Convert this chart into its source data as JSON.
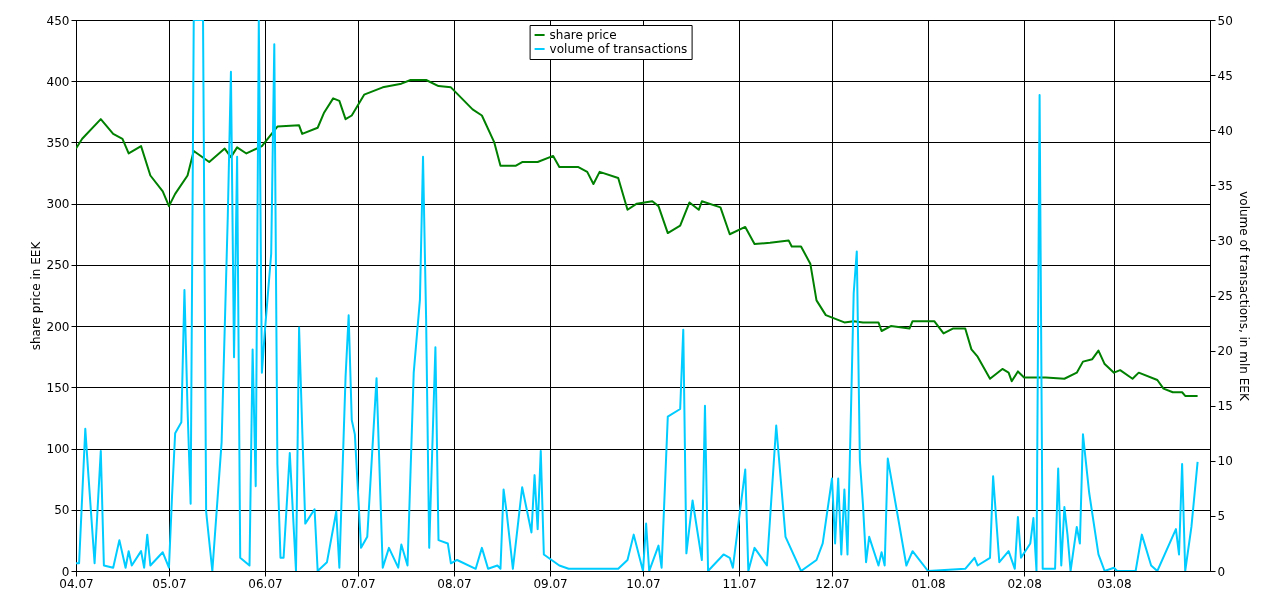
{
  "chart_data": {
    "type": "line",
    "xlabel": null,
    "ylabel": "share price in EEK",
    "y2label": "volume of transactions, in mln EEK",
    "xlim": [
      "2007-04-01",
      "2008-04-01"
    ],
    "xticks": [
      {
        "value": "2007-04-01",
        "label": "04.07"
      },
      {
        "value": "2007-05-01",
        "label": "05.07"
      },
      {
        "value": "2007-06-01",
        "label": "06.07"
      },
      {
        "value": "2007-07-01",
        "label": "07.07"
      },
      {
        "value": "2007-08-01",
        "label": "08.07"
      },
      {
        "value": "2007-09-01",
        "label": "09.07"
      },
      {
        "value": "2007-10-01",
        "label": "10.07"
      },
      {
        "value": "2007-11-01",
        "label": "11.07"
      },
      {
        "value": "2007-12-01",
        "label": "12.07"
      },
      {
        "value": "2008-01-01",
        "label": "01.08"
      },
      {
        "value": "2008-02-01",
        "label": "02.08"
      },
      {
        "value": "2008-03-01",
        "label": "03.08"
      }
    ],
    "ylim": [
      0,
      450
    ],
    "yticks": [
      0,
      50,
      100,
      150,
      200,
      250,
      300,
      350,
      400,
      450
    ],
    "y2lim": [
      0,
      50
    ],
    "y2ticks": [
      0,
      5,
      10,
      15,
      20,
      25,
      30,
      35,
      40,
      45,
      50
    ],
    "grid": true,
    "legend": "top",
    "line_style": "solid",
    "marker": "none",
    "series": [
      {
        "name": "share price",
        "color": "#008000",
        "x": [
          "2007-04-01",
          "2007-04-03",
          "2007-04-09",
          "2007-04-13",
          "2007-04-16",
          "2007-04-18",
          "2007-04-22",
          "2007-04-25",
          "2007-04-29",
          "2007-05-01",
          "2007-05-03",
          "2007-05-07",
          "2007-05-09",
          "2007-05-14",
          "2007-05-19",
          "2007-05-21",
          "2007-05-23",
          "2007-05-26",
          "2007-05-31",
          "2007-06-05",
          "2007-06-12",
          "2007-06-13",
          "2007-06-18",
          "2007-06-20",
          "2007-06-23",
          "2007-06-25",
          "2007-06-27",
          "2007-06-29",
          "2007-07-03",
          "2007-07-09",
          "2007-07-15",
          "2007-07-18",
          "2007-07-23",
          "2007-07-27",
          "2007-07-31",
          "2007-08-07",
          "2007-08-10",
          "2007-08-14",
          "2007-08-16",
          "2007-08-21",
          "2007-08-23",
          "2007-08-28",
          "2007-09-02",
          "2007-09-04",
          "2007-09-10",
          "2007-09-13",
          "2007-09-15",
          "2007-09-17",
          "2007-09-23",
          "2007-09-26",
          "2007-09-29",
          "2007-10-04",
          "2007-10-06",
          "2007-10-09",
          "2007-10-13",
          "2007-10-16",
          "2007-10-19",
          "2007-10-20",
          "2007-10-26",
          "2007-10-29",
          "2007-11-03",
          "2007-11-06",
          "2007-11-11",
          "2007-11-17",
          "2007-11-18",
          "2007-11-21",
          "2007-11-24",
          "2007-11-26",
          "2007-11-29",
          "2007-12-05",
          "2007-12-08",
          "2007-12-11",
          "2007-12-16",
          "2007-12-17",
          "2007-12-20",
          "2007-12-26",
          "2007-12-27",
          "2008-01-03",
          "2008-01-06",
          "2008-01-09",
          "2008-01-13",
          "2008-01-15",
          "2008-01-17",
          "2008-01-21",
          "2008-01-25",
          "2008-01-27",
          "2008-01-28",
          "2008-01-30",
          "2008-02-01",
          "2008-02-08",
          "2008-02-14",
          "2008-02-18",
          "2008-02-20",
          "2008-02-23",
          "2008-02-25",
          "2008-02-27",
          "2008-03-01",
          "2008-03-03",
          "2008-03-07",
          "2008-03-09",
          "2008-03-15",
          "2008-03-17",
          "2008-03-20",
          "2008-03-23",
          "2008-03-24",
          "2008-03-28"
        ],
        "values": [
          345,
          353,
          369,
          357,
          353,
          341,
          347,
          323,
          310,
          298,
          308,
          323,
          343,
          334,
          345,
          338,
          346,
          341,
          347,
          363,
          364,
          357,
          362,
          374,
          386,
          384,
          369,
          372,
          389,
          395,
          398,
          401,
          401,
          396,
          395,
          377,
          372,
          350,
          331,
          331,
          334,
          334,
          339,
          330,
          330,
          326,
          316,
          326,
          321,
          295,
          300,
          302,
          298,
          276,
          282,
          301,
          295,
          302,
          297,
          275,
          281,
          267,
          268,
          270,
          265,
          265,
          251,
          221,
          209,
          203,
          204,
          203,
          203,
          196,
          200,
          198,
          204,
          204,
          194,
          198,
          198,
          181,
          175,
          157,
          165,
          162,
          155,
          163,
          158,
          158,
          157,
          162,
          171,
          173,
          180,
          169,
          162,
          164,
          157,
          162,
          156,
          149,
          146,
          146,
          143,
          143
        ]
      },
      {
        "name": "volume of transactions",
        "color": "#00ccff",
        "axis": "y2",
        "x": [
          "2007-04-01",
          "2007-04-02",
          "2007-04-04",
          "2007-04-05",
          "2007-04-07",
          "2007-04-09",
          "2007-04-10",
          "2007-04-13",
          "2007-04-15",
          "2007-04-17",
          "2007-04-18",
          "2007-04-19",
          "2007-04-22",
          "2007-04-23",
          "2007-04-24",
          "2007-04-25",
          "2007-04-29",
          "2007-05-01",
          "2007-05-02",
          "2007-05-03",
          "2007-05-05",
          "2007-05-06",
          "2007-05-07",
          "2007-05-08",
          "2007-05-09",
          "2007-05-12",
          "2007-05-13",
          "2007-05-15",
          "2007-05-18",
          "2007-05-20",
          "2007-05-21",
          "2007-05-22",
          "2007-05-23",
          "2007-05-24",
          "2007-05-27",
          "2007-05-28",
          "2007-05-29",
          "2007-05-30",
          "2007-05-31",
          "2007-06-01",
          "2007-06-03",
          "2007-06-04",
          "2007-06-05",
          "2007-06-06",
          "2007-06-07",
          "2007-06-09",
          "2007-06-11",
          "2007-06-12",
          "2007-06-13",
          "2007-06-14",
          "2007-06-17",
          "2007-06-18",
          "2007-06-21",
          "2007-06-24",
          "2007-06-25",
          "2007-06-27",
          "2007-06-28",
          "2007-06-29",
          "2007-06-30",
          "2007-07-02",
          "2007-07-04",
          "2007-07-07",
          "2007-07-09",
          "2007-07-11",
          "2007-07-14",
          "2007-07-15",
          "2007-07-17",
          "2007-07-19",
          "2007-07-21",
          "2007-07-22",
          "2007-07-23",
          "2007-07-24",
          "2007-07-26",
          "2007-07-27",
          "2007-07-30",
          "2007-07-31",
          "2007-08-02",
          "2007-08-08",
          "2007-08-10",
          "2007-08-12",
          "2007-08-15",
          "2007-08-16",
          "2007-08-17",
          "2007-08-18",
          "2007-08-20",
          "2007-08-23",
          "2007-08-26",
          "2007-08-27",
          "2007-08-28",
          "2007-08-29",
          "2007-08-30",
          "2007-09-04",
          "2007-09-07",
          "2007-09-14",
          "2007-09-23",
          "2007-09-26",
          "2007-09-28",
          "2007-10-01",
          "2007-10-02",
          "2007-10-03",
          "2007-10-06",
          "2007-10-07",
          "2007-10-09",
          "2007-10-13",
          "2007-10-14",
          "2007-10-15",
          "2007-10-17",
          "2007-10-20",
          "2007-10-21",
          "2007-10-22",
          "2007-10-27",
          "2007-10-29",
          "2007-10-30",
          "2007-11-03",
          "2007-11-04",
          "2007-11-06",
          "2007-11-10",
          "2007-11-13",
          "2007-11-16",
          "2007-11-21",
          "2007-11-26",
          "2007-11-28",
          "2007-12-01",
          "2007-12-02",
          "2007-12-03",
          "2007-12-04",
          "2007-12-05",
          "2007-12-06",
          "2007-12-07",
          "2007-12-08",
          "2007-12-09",
          "2007-12-10",
          "2007-12-11",
          "2007-12-12",
          "2007-12-13",
          "2007-12-16",
          "2007-12-17",
          "2007-12-18",
          "2007-12-19",
          "2007-12-25",
          "2007-12-27",
          "2008-01-01",
          "2008-01-13",
          "2008-01-16",
          "2008-01-17",
          "2008-01-21",
          "2008-01-22",
          "2008-01-24",
          "2008-01-27",
          "2008-01-29",
          "2008-01-30",
          "2008-01-31",
          "2008-02-03",
          "2008-02-04",
          "2008-02-05",
          "2008-02-06",
          "2008-02-07",
          "2008-02-11",
          "2008-02-12",
          "2008-02-13",
          "2008-02-14",
          "2008-02-15",
          "2008-02-16",
          "2008-02-18",
          "2008-02-19",
          "2008-02-20",
          "2008-02-22",
          "2008-02-25",
          "2008-02-27",
          "2008-03-01",
          "2008-03-02",
          "2008-03-08",
          "2008-03-10",
          "2008-03-13",
          "2008-03-15",
          "2008-03-21",
          "2008-03-22",
          "2008-03-23",
          "2008-03-24",
          "2008-03-26",
          "2008-03-28"
        ],
        "values": [
          0.7,
          0.7,
          12.9,
          8.7,
          0.7,
          10.9,
          0.5,
          0.3,
          2.8,
          0.3,
          1.8,
          0.5,
          1.8,
          0.3,
          3.3,
          0.5,
          1.7,
          0.3,
          6.8,
          12.5,
          13.5,
          25.5,
          14.7,
          6.1,
          50,
          50,
          5.4,
          0,
          11.7,
          32.3,
          45.3,
          19.4,
          37.6,
          1.2,
          0.5,
          20.1,
          7.7,
          50,
          18,
          21.9,
          28.8,
          47.8,
          9.7,
          1.2,
          1.2,
          10.7,
          0,
          22.1,
          13,
          4.3,
          5.6,
          0,
          0.8,
          5.4,
          0.3,
          17.6,
          23.2,
          13.7,
          12.4,
          2.1,
          3.1,
          17.5,
          0.3,
          2.1,
          0.3,
          2.4,
          0.5,
          18,
          24.6,
          37.6,
          22.9,
          2.1,
          20.3,
          2.8,
          2.5,
          0.7,
          1,
          0.2,
          2.1,
          0.2,
          0.5,
          0.2,
          7.4,
          5.3,
          0.2,
          7.6,
          3.5,
          8.7,
          3.8,
          10.9,
          1.5,
          0.5,
          0.2,
          0.2,
          0.2,
          1,
          3.3,
          0,
          4.3,
          0,
          2.3,
          0.3,
          14,
          14.7,
          21.9,
          1.6,
          6.4,
          1,
          15,
          0,
          1.5,
          1.2,
          0.3,
          9.2,
          0,
          2.1,
          0.5,
          13.2,
          3.1,
          0,
          1,
          2.5,
          8.4,
          2.5,
          8.4,
          1.5,
          7.4,
          1.5,
          13,
          25.2,
          29,
          10,
          6,
          0.8,
          3.1,
          0.5,
          1.7,
          0.5,
          10.2,
          0.5,
          1.8,
          0,
          0.2,
          1.2,
          0.5,
          1.2,
          8.6,
          0.8,
          1.8,
          0.2,
          4.9,
          1.2,
          2.5,
          4.8,
          0,
          43.2,
          0.2,
          0.2,
          9.3,
          0.5,
          5.8,
          3.3,
          0,
          4,
          2.5,
          12.4,
          7.1,
          1.5,
          0,
          0.3,
          0,
          0,
          3.3,
          0.5,
          0,
          3.8,
          1.5,
          9.7,
          0,
          4,
          9.9
        ]
      }
    ]
  }
}
